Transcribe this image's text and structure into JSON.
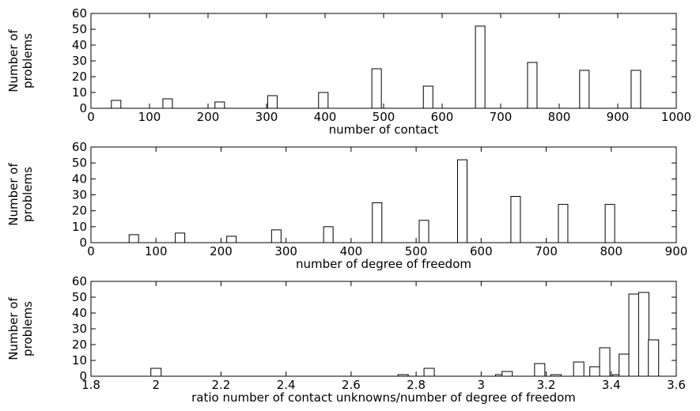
{
  "chart_data": [
    {
      "type": "bar",
      "xlabel": "number of contact",
      "ylabel": [
        "Number of",
        "problems"
      ],
      "xlim": [
        0,
        1000
      ],
      "ylim": [
        0,
        60
      ],
      "xticks": [
        "0",
        "100",
        "200",
        "300",
        "400",
        "500",
        "600",
        "700",
        "800",
        "900",
        "1000"
      ],
      "yticks": [
        "0",
        "10",
        "20",
        "30",
        "40",
        "50",
        "60"
      ],
      "x": [
        43,
        131,
        220,
        310,
        397,
        488,
        576,
        665,
        754,
        843,
        931
      ],
      "values": [
        5,
        6,
        4,
        8,
        10,
        25,
        14,
        52,
        29,
        24,
        24
      ],
      "grid": false
    },
    {
      "type": "bar",
      "xlabel": "number of degree of freedom",
      "ylabel": [
        "Number of",
        "problems"
      ],
      "xlim": [
        0,
        900
      ],
      "ylim": [
        0,
        60
      ],
      "xticks": [
        "0",
        "100",
        "200",
        "300",
        "400",
        "500",
        "600",
        "700",
        "800",
        "900"
      ],
      "yticks": [
        "0",
        "10",
        "20",
        "30",
        "40",
        "50",
        "60"
      ],
      "x": [
        66,
        137,
        216,
        285,
        365,
        440,
        512,
        571,
        653,
        726,
        798
      ],
      "values": [
        5,
        6,
        4,
        8,
        10,
        25,
        14,
        52,
        29,
        24,
        24
      ],
      "grid": false
    },
    {
      "type": "bar",
      "xlabel": "ratio number of contact unknowns/number of degree of freedom",
      "ylabel": [
        "Number of",
        "problems"
      ],
      "xlim": [
        1.8,
        3.6
      ],
      "ylim": [
        0,
        60
      ],
      "xticks": [
        "1.8",
        "2",
        "2.2",
        "2.4",
        "2.6",
        "2.8",
        "3",
        "3.2",
        "3.4",
        "3.6"
      ],
      "yticks": [
        "0",
        "10",
        "20",
        "30",
        "40",
        "50",
        "60"
      ],
      "x": [
        2.0,
        2.76,
        2.84,
        3.06,
        3.08,
        3.18,
        3.23,
        3.3,
        3.35,
        3.38,
        3.42,
        3.44,
        3.47,
        3.5,
        3.53
      ],
      "values": [
        5,
        1,
        5,
        1,
        3,
        8,
        1,
        9,
        6,
        18,
        1,
        14,
        52,
        53,
        23
      ],
      "grid": false
    }
  ]
}
